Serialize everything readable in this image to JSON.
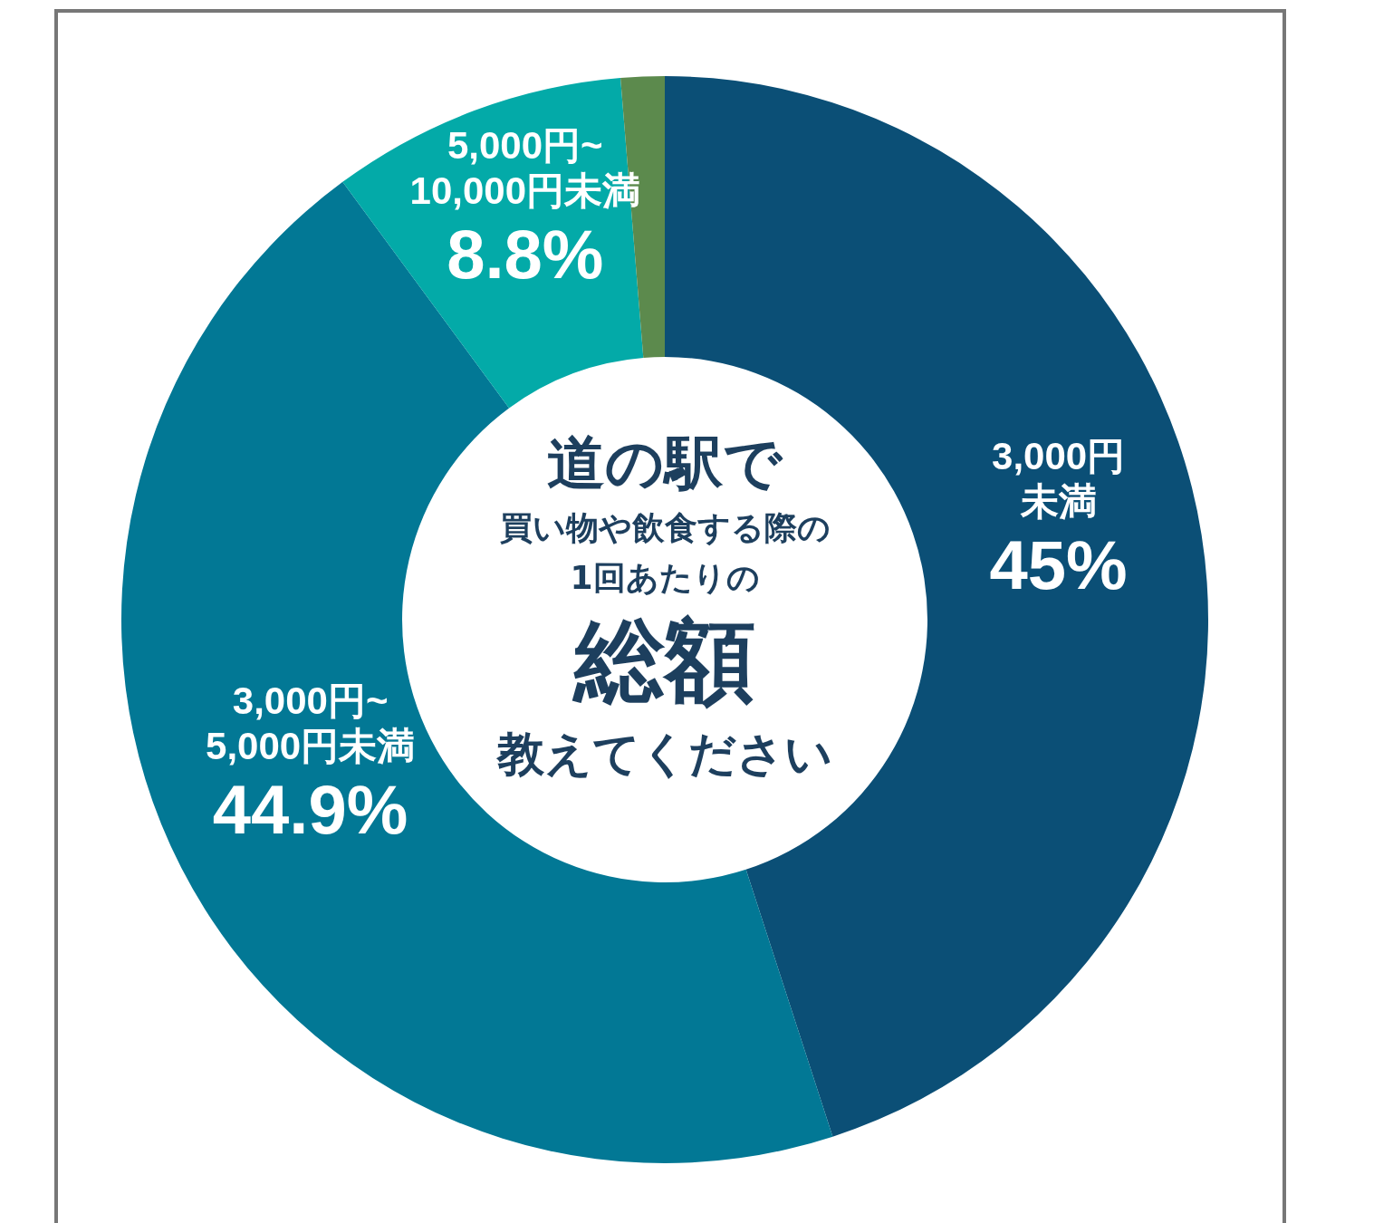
{
  "chart_data": {
    "type": "donut",
    "categories": [
      "3,000円未満",
      "3,000円~5,000円未満",
      "5,000円~10,000円未満",
      null
    ],
    "values": [
      45,
      44.9,
      8.8,
      1.3
    ],
    "colors": [
      "#0b4f76",
      "#027895",
      "#03aaa8",
      "#5c8a4d"
    ],
    "value_labels": [
      "45%",
      "44.9%",
      "8.8%",
      null
    ],
    "annotations": [
      "道の駅で",
      "買い物や飲食する際の",
      "1回あたりの",
      "総額",
      "教えてください"
    ],
    "legend": false
  }
}
